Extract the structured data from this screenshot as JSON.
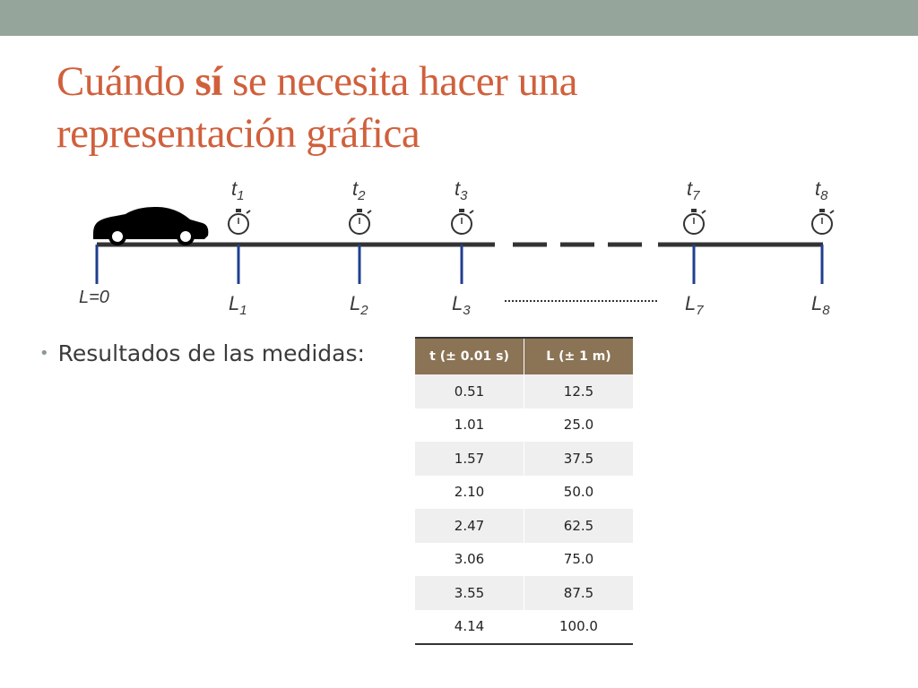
{
  "slide": {
    "title_part1": "Cuándo ",
    "title_bold": "sí",
    "title_part2": " se necesita hacer una",
    "title_line2": "representación gráfica"
  },
  "diagram": {
    "origin_label": "L=0",
    "times": [
      {
        "base": "t",
        "sub": "1"
      },
      {
        "base": "t",
        "sub": "2"
      },
      {
        "base": "t",
        "sub": "3"
      },
      {
        "base": "t",
        "sub": "7"
      },
      {
        "base": "t",
        "sub": "8"
      }
    ],
    "positions": [
      {
        "base": "L",
        "sub": "1"
      },
      {
        "base": "L",
        "sub": "2"
      },
      {
        "base": "L",
        "sub": "3"
      },
      {
        "base": "L",
        "sub": "7"
      },
      {
        "base": "L",
        "sub": "8"
      }
    ]
  },
  "bullet": {
    "text": "Resultados de las medidas:"
  },
  "table": {
    "headers": [
      "t (± 0.01 s)",
      "L (± 1 m)"
    ],
    "rows": [
      [
        "0.51",
        "12.5"
      ],
      [
        "1.01",
        "25.0"
      ],
      [
        "1.57",
        "37.5"
      ],
      [
        "2.10",
        "50.0"
      ],
      [
        "2.47",
        "62.5"
      ],
      [
        "3.06",
        "75.0"
      ],
      [
        "3.55",
        "87.5"
      ],
      [
        "4.14",
        "100.0"
      ]
    ]
  },
  "colors": {
    "top_bar": "#95a59b",
    "title": "#d0603c",
    "table_header": "#8b7355",
    "marker_lines": "#1f3f8f"
  }
}
